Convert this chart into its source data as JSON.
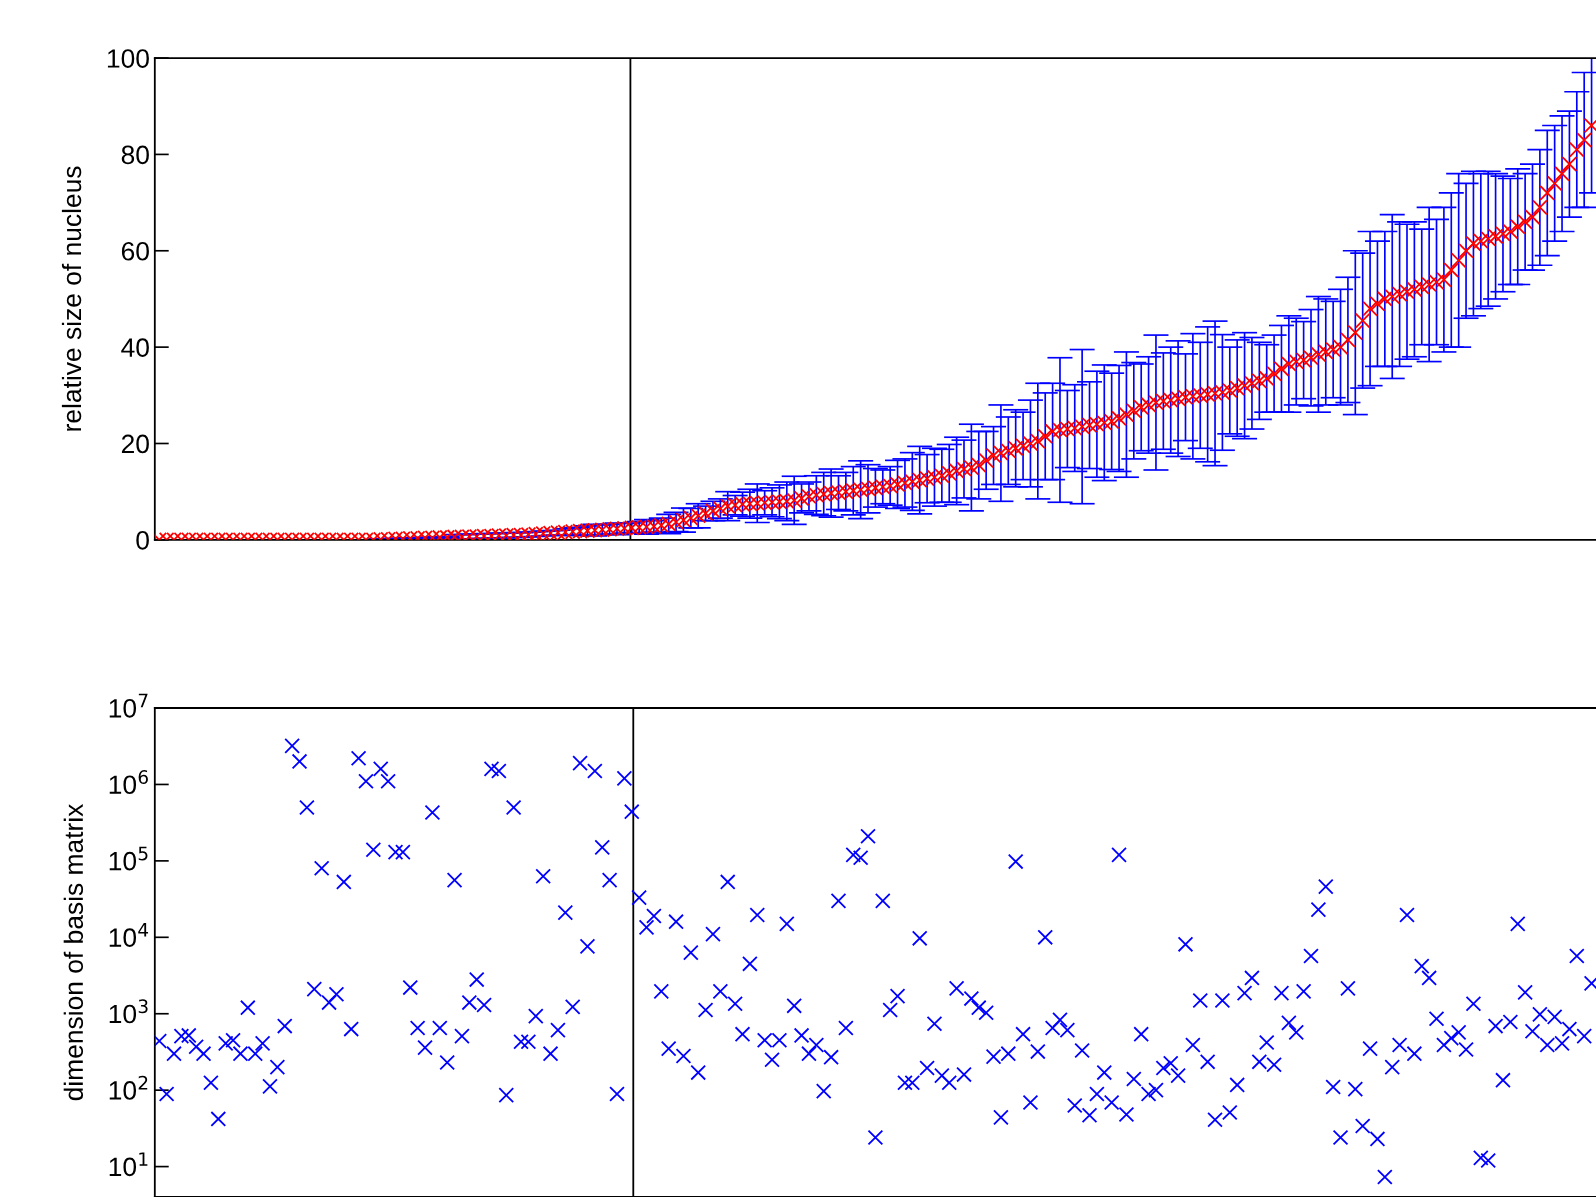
{
  "chart_data": [
    {
      "type": "scatter",
      "ylabel": "relative size of nucleus",
      "categories": [
        null,
        null,
        null,
        null,
        null,
        null,
        null,
        null,
        null,
        null,
        null,
        null,
        null,
        null,
        null,
        null,
        null,
        null,
        null,
        null,
        null,
        null,
        null,
        null,
        null,
        null,
        null,
        null,
        null,
        null,
        null,
        null,
        null,
        null,
        null,
        null,
        null,
        null,
        null,
        null,
        null,
        null,
        null,
        null,
        null,
        null,
        null,
        null,
        null,
        null,
        null,
        null,
        null,
        null,
        null,
        null,
        null,
        null,
        null,
        null,
        null,
        null,
        null,
        null,
        null,
        null,
        null,
        null,
        null,
        null,
        null,
        null,
        null,
        null,
        null,
        null,
        null,
        null,
        null,
        null,
        null,
        null,
        null,
        null,
        null,
        null,
        null,
        null,
        null,
        null,
        null,
        null,
        null,
        null,
        null,
        null,
        null,
        null,
        null,
        null,
        null,
        null,
        null,
        null,
        null,
        null,
        null,
        null,
        null,
        null,
        null,
        null,
        null,
        null,
        null,
        null,
        null,
        null,
        null,
        null,
        null,
        null,
        null,
        null,
        null,
        null,
        null,
        null,
        null,
        null,
        null,
        null,
        null,
        null,
        null,
        null,
        null,
        null,
        null,
        null,
        null,
        null,
        null,
        null,
        null,
        null,
        null,
        null,
        null,
        null,
        null,
        null,
        null,
        null,
        null,
        null,
        null,
        null,
        null,
        null,
        null,
        null,
        null,
        null,
        null,
        null,
        null,
        null,
        null,
        null,
        null,
        null,
        null,
        null,
        null,
        null,
        null,
        null,
        null,
        null,
        null,
        null,
        null,
        null,
        null,
        null,
        null,
        null,
        null,
        null,
        null,
        null,
        null,
        null,
        null
      ],
      "ylim": [
        0,
        100
      ],
      "yticks": [
        0,
        20,
        40,
        60,
        80,
        100
      ],
      "tick_labels": "y",
      "marker": "cross",
      "series": [
        {
          "color": "#ff0000",
          "values": [
            0,
            0,
            0,
            0,
            0,
            0,
            0,
            0,
            0,
            0,
            0,
            0,
            0,
            0,
            0,
            0,
            0,
            0,
            0,
            0,
            0,
            0,
            0,
            0,
            0,
            0,
            0,
            0,
            0,
            0,
            0.1,
            0.1,
            0.2,
            0.2,
            0.3,
            0.3,
            0.4,
            0.4,
            0.5,
            0.5,
            0.6,
            0.6,
            0.7,
            0.7,
            0.8,
            0.8,
            0.9,
            0.9,
            1.0,
            1.0,
            1.1,
            1.2,
            1.3,
            1.4,
            1.5,
            1.6,
            1.7,
            1.8,
            1.9,
            2.0,
            2.1,
            2.2,
            2.3,
            2.4,
            2.5,
            2.6,
            2.7,
            2.8,
            3.0,
            3.3,
            3.7,
            4.1,
            4.5,
            5.0,
            5.5,
            6.0,
            6.5,
            7.0,
            7.2,
            7.4,
            7.5,
            7.6,
            7.7,
            7.8,
            7.9,
            8.0,
            8.2,
            8.6,
            9.0,
            9.3,
            9.5,
            9.7,
            9.8,
            10.0,
            10.2,
            10.4,
            10.6,
            10.8,
            11.0,
            11.2,
            11.5,
            11.8,
            12.1,
            12.4,
            12.7,
            13.0,
            13.3,
            13.8,
            14.3,
            14.7,
            15.0,
            15.5,
            16.5,
            17.5,
            18.0,
            18.5,
            19.0,
            19.5,
            20.0,
            20.5,
            21.5,
            22.5,
            22.8,
            23.0,
            23.2,
            23.5,
            23.8,
            24.0,
            24.3,
            24.6,
            25.2,
            26.0,
            26.8,
            27.5,
            28.0,
            28.5,
            28.8,
            29.0,
            29.3,
            29.6,
            29.8,
            30.0,
            30.2,
            30.4,
            30.6,
            31.0,
            31.5,
            32.0,
            32.5,
            33.0,
            33.5,
            34.5,
            35.5,
            36.5,
            37.0,
            37.3,
            37.8,
            38.5,
            39.0,
            39.5,
            40.0,
            41.5,
            43.0,
            45.5,
            48.0,
            49.0,
            50.0,
            50.5,
            51.0,
            51.5,
            52.0,
            52.5,
            53.0,
            53.5,
            54.0,
            56.0,
            58.0,
            60.0,
            61.5,
            62.0,
            62.5,
            63.0,
            63.5,
            64.0,
            65.0,
            66.0,
            67.0,
            69.0,
            72.0,
            74.0,
            76.0,
            78.0,
            81.0,
            83.0,
            86.0
          ],
          "errors": [
            null,
            null,
            null,
            null,
            null,
            null,
            null,
            null,
            null,
            null,
            null,
            null,
            null,
            null,
            null,
            null,
            null,
            null,
            null,
            null,
            null,
            null,
            null,
            null,
            null,
            null,
            null,
            null,
            null,
            null,
            0.1,
            0.1,
            0.1,
            0.1,
            0.1,
            0.1,
            0.1,
            0.1,
            0.1,
            0.1,
            0.5,
            0.5,
            0.5,
            0.5,
            0.5,
            0.5,
            0.5,
            0.5,
            0.5,
            0.5,
            0.5,
            0.5,
            0.5,
            0.5,
            0.5,
            0.7,
            0.8,
            0.8,
            1.0,
            1.2,
            1.0,
            1.0,
            1.2,
            1.0,
            1.0,
            1.2,
            1.5,
            1.2,
            1.5,
            2.0,
            2.0,
            2.5,
            2.0,
            2.5,
            1.5,
            2.0,
            2.0,
            3.0,
            2.0,
            2.5,
            3.0,
            4.0,
            2.5,
            3.0,
            3.5,
            4.0,
            5.0,
            3.0,
            3.0,
            4.0,
            4.5,
            5.0,
            3.5,
            4.0,
            5.0,
            6.0,
            5.0,
            4.0,
            3.5,
            4.0,
            5,
            5,
            6,
            7,
            5,
            6,
            5.5,
            6,
            7,
            6,
            9,
            7,
            6,
            6,
            10,
            7,
            8,
            7,
            9,
            12,
            9,
            10,
            15,
            8,
            9,
            16,
            9,
            11,
            12,
            10,
            11,
            13,
            10,
            9,
            10,
            14,
            10,
            11,
            12,
            9,
            13,
            11,
            14,
            15,
            12,
            9,
            10,
            11,
            9.5,
            8,
            7,
            8,
            9,
            10,
            9,
            8,
            10,
            12,
            11,
            10,
            12,
            13,
            17,
            14,
            16,
            13,
            14,
            17,
            15,
            14,
            14,
            12,
            16,
            13,
            15,
            16,
            18,
            14,
            15,
            14,
            14,
            13,
            12,
            11,
            12,
            10,
            11,
            12,
            13,
            12,
            12,
            11,
            12,
            14,
            14
          ]
        }
      ]
    },
    {
      "type": "scatter",
      "ylabel": "dimension of basis matrix",
      "log": "y",
      "categories": [
        null,
        null,
        null,
        null,
        null,
        null,
        null,
        null,
        null,
        null,
        null,
        null,
        null,
        null,
        null,
        null,
        null,
        null,
        null,
        null,
        null,
        null,
        null,
        null,
        null,
        null,
        null,
        null,
        null,
        null,
        null,
        null,
        null,
        null,
        null,
        null,
        null,
        null,
        null,
        null,
        null,
        null,
        null,
        null,
        null,
        null,
        null,
        null,
        null,
        null,
        null,
        null,
        null,
        null,
        null,
        null,
        null,
        null,
        null,
        null,
        null,
        null,
        null,
        null,
        null,
        null,
        null,
        null,
        null,
        null,
        null,
        null,
        null,
        null,
        null,
        null,
        null,
        null,
        null,
        null,
        null,
        null,
        null,
        null,
        null,
        null,
        null,
        null,
        null,
        null,
        null,
        null,
        null,
        null,
        null,
        null,
        null,
        null,
        null,
        null,
        null,
        null,
        null,
        null,
        null,
        null,
        null,
        null,
        null,
        null,
        null,
        null,
        null,
        null,
        null,
        null,
        null,
        null,
        null,
        null,
        null,
        null,
        null,
        null,
        null,
        null,
        null,
        null,
        null,
        null,
        null,
        null,
        null,
        null,
        null,
        null,
        null,
        null,
        null,
        null,
        null,
        null,
        null,
        null,
        null,
        null,
        null,
        null,
        null,
        null,
        null,
        null,
        null,
        null,
        null,
        null,
        null,
        null,
        null,
        null,
        null,
        null,
        null,
        null,
        null,
        null,
        null,
        null,
        null,
        null,
        null,
        null,
        null,
        null,
        null,
        null,
        null,
        null,
        null,
        null,
        null,
        null,
        null,
        null,
        null,
        null,
        null,
        null,
        null,
        null,
        null,
        null,
        null,
        null,
        null
      ],
      "ylim": [
        4,
        10000000
      ],
      "tick_labels": "y",
      "marker": "cross",
      "yticks": [
        {
          "value": 10,
          "label": "10$^{1}$"
        },
        {
          "value": 100,
          "label": "10$^{2}$"
        },
        {
          "value": 1000,
          "label": "10$^{3}$"
        },
        {
          "value": 10000,
          "label": "10$^{4}$"
        },
        {
          "value": 100000,
          "label": "10$^{5}$"
        },
        {
          "value": 1000000,
          "label": "10$^{6}$"
        },
        {
          "value": 10000000,
          "label": "10$^{7}$"
        }
      ],
      "series": [
        {
          "color": "#0000ff",
          "values": [
            440,
            89,
            300,
            510,
            520,
            370,
            300,
            125,
            42,
            410,
            450,
            300,
            1200,
            300,
            410,
            112,
            200,
            690,
            3200000,
            2000000,
            500000,
            2100,
            80000,
            1400,
            1800,
            53000,
            630,
            2200000,
            1100000,
            140000,
            1600000,
            1100000,
            130000,
            130000,
            2200,
            650,
            360,
            430000,
            650,
            230,
            56000,
            510,
            1400,
            2800,
            1300,
            1600000,
            1500000,
            86,
            500000,
            430,
            430,
            930,
            63000,
            300,
            610,
            21000,
            1230,
            1900000,
            7600,
            1500000,
            150000,
            56000,
            89,
            1200000,
            440000,
            33000,
            13500,
            19000,
            1960,
            350,
            16000,
            280,
            6300,
            170,
            1120,
            11000,
            1960,
            53000,
            1350,
            540,
            4500,
            19600,
            450,
            250,
            450,
            15000,
            1270,
            520,
            300,
            390,
            97,
            270,
            30000,
            650,
            120000,
            110000,
            210000,
            24,
            30000,
            1120,
            1700,
            125,
            125,
            9700,
            195,
            740,
            155,
            125,
            2150,
            160,
            1580,
            1200,
            1030,
            275,
            44,
            300,
            98000,
            540,
            69,
            320,
            10000,
            650,
            830,
            610,
            63,
            330,
            47,
            89,
            170,
            69,
            120000,
            48,
            140,
            540,
            89,
            100,
            195,
            225,
            155,
            8100,
            390,
            1490,
            235,
            41,
            1490,
            51,
            117,
            1860,
            2940,
            235,
            420,
            215,
            1860,
            760,
            570,
            1960,
            5700,
            23000,
            46000,
            110,
            24,
            2150,
            103,
            34,
            350,
            23,
            7.3,
            200,
            390,
            19600,
            300,
            4200,
            2940,
            860,
            390,
            480,
            570,
            340,
            1350,
            13,
            12,
            690,
            135,
            780,
            15000,
            1900,
            590,
            980,
            390,
            910,
            410,
            630,
            5700,
            510,
            2500
          ]
        }
      ]
    }
  ]
}
